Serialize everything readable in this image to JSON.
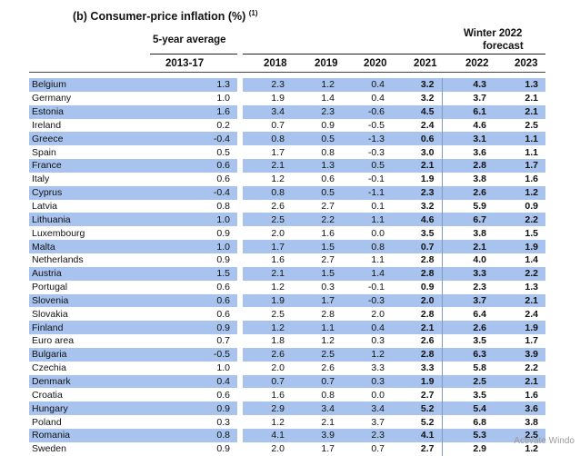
{
  "title": "(b) Consumer-price inflation (%)",
  "title_sup": "(1)",
  "header": {
    "five_year": "5-year average",
    "forecast_line1": "Winter 2022",
    "forecast_line2": "forecast",
    "columns": [
      "2013-17",
      "2018",
      "2019",
      "2020",
      "2021",
      "2022",
      "2023"
    ]
  },
  "rows": [
    {
      "name": "Belgium",
      "v": [
        "1.3",
        "2.3",
        "1.2",
        "0.4",
        "3.2",
        "4.3",
        "1.3"
      ]
    },
    {
      "name": "Germany",
      "v": [
        "1.0",
        "1.9",
        "1.4",
        "0.4",
        "3.2",
        "3.7",
        "2.1"
      ]
    },
    {
      "name": "Estonia",
      "v": [
        "1.6",
        "3.4",
        "2.3",
        "-0.6",
        "4.5",
        "6.1",
        "2.1"
      ]
    },
    {
      "name": "Ireland",
      "v": [
        "0.2",
        "0.7",
        "0.9",
        "-0.5",
        "2.4",
        "4.6",
        "2.5"
      ]
    },
    {
      "name": "Greece",
      "v": [
        "-0.4",
        "0.8",
        "0.5",
        "-1.3",
        "0.6",
        "3.1",
        "1.1"
      ]
    },
    {
      "name": "Spain",
      "v": [
        "0.5",
        "1.7",
        "0.8",
        "-0.3",
        "3.0",
        "3.6",
        "1.1"
      ]
    },
    {
      "name": "France",
      "v": [
        "0.6",
        "2.1",
        "1.3",
        "0.5",
        "2.1",
        "2.8",
        "1.7"
      ]
    },
    {
      "name": "Italy",
      "v": [
        "0.6",
        "1.2",
        "0.6",
        "-0.1",
        "1.9",
        "3.8",
        "1.6"
      ]
    },
    {
      "name": "Cyprus",
      "v": [
        "-0.4",
        "0.8",
        "0.5",
        "-1.1",
        "2.3",
        "2.6",
        "1.2"
      ]
    },
    {
      "name": "Latvia",
      "v": [
        "0.8",
        "2.6",
        "2.7",
        "0.1",
        "3.2",
        "5.9",
        "0.9"
      ]
    },
    {
      "name": "Lithuania",
      "v": [
        "1.0",
        "2.5",
        "2.2",
        "1.1",
        "4.6",
        "6.7",
        "2.2"
      ]
    },
    {
      "name": "Luxembourg",
      "v": [
        "0.9",
        "2.0",
        "1.6",
        "0.0",
        "3.5",
        "3.8",
        "1.5"
      ]
    },
    {
      "name": "Malta",
      "v": [
        "1.0",
        "1.7",
        "1.5",
        "0.8",
        "0.7",
        "2.1",
        "1.9"
      ]
    },
    {
      "name": "Netherlands",
      "v": [
        "0.9",
        "1.6",
        "2.7",
        "1.1",
        "2.8",
        "4.0",
        "1.4"
      ]
    },
    {
      "name": "Austria",
      "v": [
        "1.5",
        "2.1",
        "1.5",
        "1.4",
        "2.8",
        "3.3",
        "2.2"
      ]
    },
    {
      "name": "Portugal",
      "v": [
        "0.6",
        "1.2",
        "0.3",
        "-0.1",
        "0.9",
        "2.3",
        "1.3"
      ]
    },
    {
      "name": "Slovenia",
      "v": [
        "0.6",
        "1.9",
        "1.7",
        "-0.3",
        "2.0",
        "3.7",
        "2.1"
      ]
    },
    {
      "name": "Slovakia",
      "v": [
        "0.6",
        "2.5",
        "2.8",
        "2.0",
        "2.8",
        "6.4",
        "2.4"
      ]
    },
    {
      "name": "Finland",
      "v": [
        "0.9",
        "1.2",
        "1.1",
        "0.4",
        "2.1",
        "2.6",
        "1.9"
      ]
    },
    {
      "name": "Euro area",
      "v": [
        "0.7",
        "1.8",
        "1.2",
        "0.3",
        "2.6",
        "3.5",
        "1.7"
      ]
    },
    {
      "name": "Bulgaria",
      "v": [
        "-0.5",
        "2.6",
        "2.5",
        "1.2",
        "2.8",
        "6.3",
        "3.9"
      ]
    },
    {
      "name": "Czechia",
      "v": [
        "1.0",
        "2.0",
        "2.6",
        "3.3",
        "3.3",
        "5.8",
        "2.2"
      ]
    },
    {
      "name": "Denmark",
      "v": [
        "0.4",
        "0.7",
        "0.7",
        "0.3",
        "1.9",
        "2.5",
        "2.1"
      ]
    },
    {
      "name": "Croatia",
      "v": [
        "0.6",
        "1.6",
        "0.8",
        "0.0",
        "2.7",
        "3.5",
        "1.6"
      ]
    },
    {
      "name": "Hungary",
      "v": [
        "0.9",
        "2.9",
        "3.4",
        "3.4",
        "5.2",
        "5.4",
        "3.6"
      ]
    },
    {
      "name": "Poland",
      "v": [
        "0.3",
        "1.2",
        "2.1",
        "3.7",
        "5.2",
        "6.8",
        "3.8"
      ]
    },
    {
      "name": "Romania",
      "v": [
        "0.8",
        "4.1",
        "3.9",
        "2.3",
        "4.1",
        "5.3",
        "2.5"
      ]
    },
    {
      "name": "Sweden",
      "v": [
        "0.9",
        "2.0",
        "1.7",
        "0.7",
        "2.7",
        "2.9",
        "1.2"
      ]
    }
  ],
  "watermark": "Activate Windo"
}
